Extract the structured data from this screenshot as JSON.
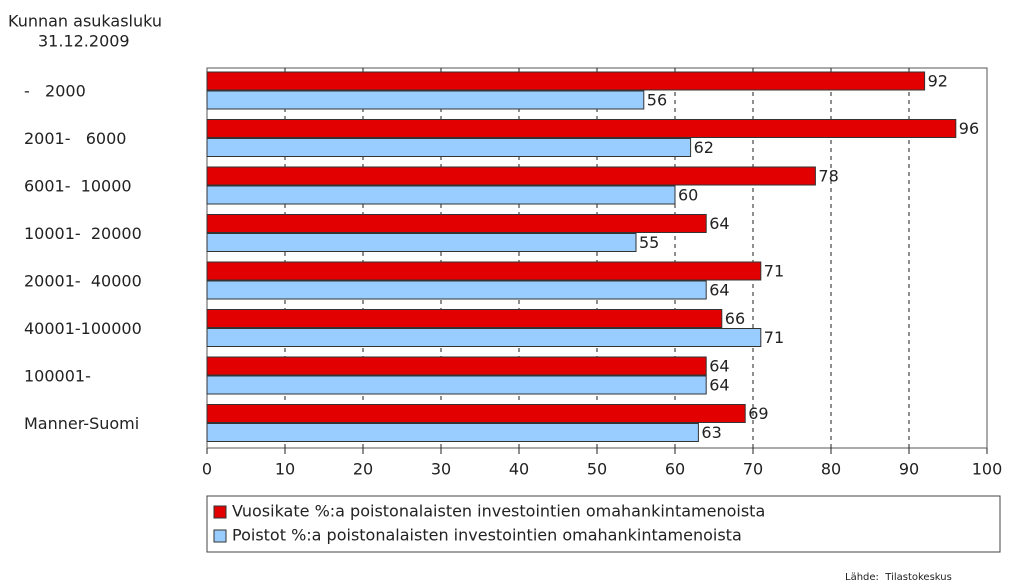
{
  "chart_data": {
    "type": "hbar",
    "title": [
      "Kunnan asukasluku",
      "31.12.2009"
    ],
    "categories": [
      "-   2000",
      "2001-   6000",
      "6001-  10000",
      "10001-  20000",
      "20001-  40000",
      "40001-100000",
      "100001-",
      "Manner-Suomi"
    ],
    "series": [
      {
        "name": "Vuosikate %:a poistonalaisten investointien omahankintamenoista",
        "color": "#e30000",
        "values": [
          92,
          96,
          78,
          64,
          71,
          66,
          64,
          69
        ]
      },
      {
        "name": "Poistot %:a poistonalaisten investointien omahankintamenoista",
        "color": "#99ccff",
        "values": [
          56,
          62,
          60,
          55,
          64,
          71,
          64,
          63
        ]
      }
    ],
    "xlim": [
      0,
      100
    ],
    "xticks": [
      0,
      10,
      20,
      30,
      40,
      50,
      60,
      70,
      80,
      90,
      100
    ],
    "grid": true,
    "source": "Lähde:  Tilastokeskus"
  }
}
